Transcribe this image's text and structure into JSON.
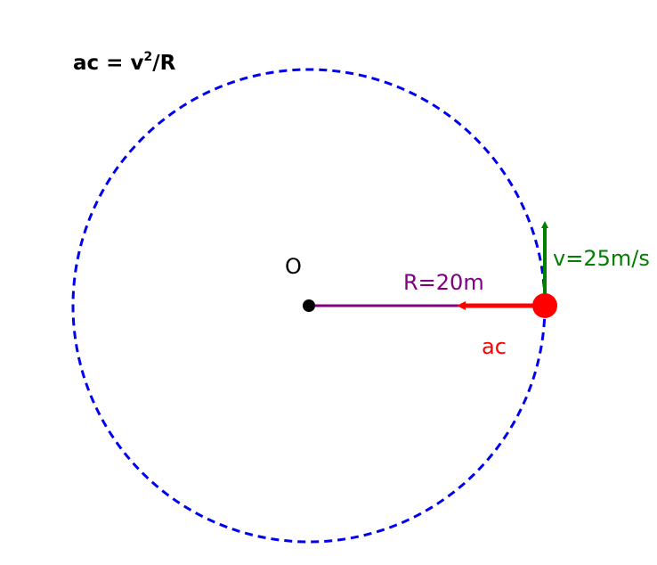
{
  "formula": {
    "base": "ac = v",
    "exponent": "2",
    "tail": "/R"
  },
  "labels": {
    "center": "O",
    "radius": "R=20m",
    "velocity": "v=25m/s",
    "acceleration": "ac"
  },
  "colors": {
    "orbit": "#0000ee",
    "radius": "#800080",
    "velocity": "#008000",
    "acceleration": "#ff0000",
    "particle": "#ff0000",
    "center": "#000000",
    "text": "#000000"
  }
}
